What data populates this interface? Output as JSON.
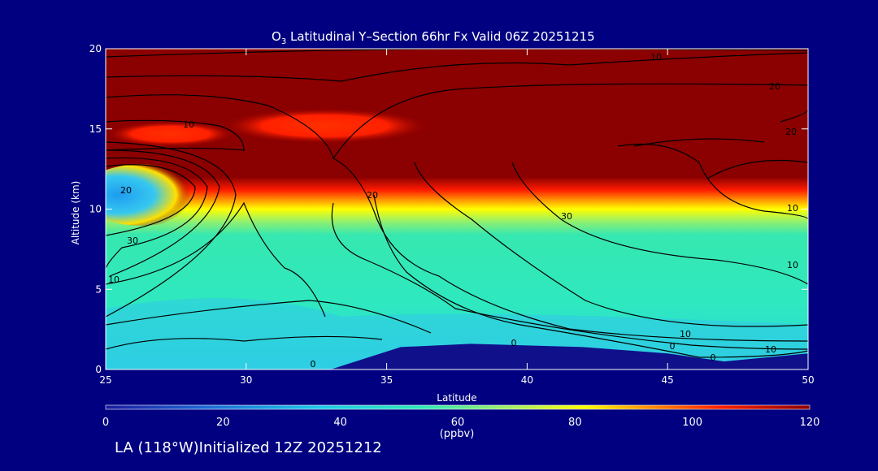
{
  "chart_data": {
    "type": "heatmap",
    "title_prefix": "O",
    "title_subscript": "3",
    "title_rest": " Latitudinal Y–Section 66hr  Fx Valid 06Z 20251215",
    "xlabel": "Latitude",
    "ylabel": "Altitude (km)",
    "xlim": [
      25,
      50
    ],
    "ylim": [
      0,
      20
    ],
    "xticks": [
      25,
      30,
      35,
      40,
      45,
      50
    ],
    "yticks": [
      0,
      5,
      10,
      15,
      20
    ],
    "colorbar": {
      "label": "(ppbv)",
      "range": [
        0,
        120
      ],
      "ticks": [
        0,
        20,
        40,
        60,
        80,
        100,
        120
      ],
      "colors": [
        "#1a1aa0",
        "#1e6fd8",
        "#1ec8e8",
        "#30e8b8",
        "#a8f060",
        "#ffff00",
        "#ff9000",
        "#ff2000",
        "#8b0000"
      ]
    },
    "terrain_top_km": [
      {
        "lat": 25,
        "km": 0
      },
      {
        "lat": 33,
        "km": 0
      },
      {
        "lat": 35.5,
        "km": 1.4
      },
      {
        "lat": 38,
        "km": 1.6
      },
      {
        "lat": 42,
        "km": 1.4
      },
      {
        "lat": 45,
        "km": 1.0
      },
      {
        "lat": 47,
        "km": 0.5
      },
      {
        "lat": 50,
        "km": 1.0
      }
    ],
    "tropopause_km": [
      {
        "lat": 25,
        "km": 12.5
      },
      {
        "lat": 30,
        "km": 11.7
      },
      {
        "lat": 35,
        "km": 11.2
      },
      {
        "lat": 40,
        "km": 11.0
      },
      {
        "lat": 45,
        "km": 10.9
      },
      {
        "lat": 50,
        "km": 10.8
      }
    ],
    "contour_labels": [
      "0",
      "10",
      "20",
      "30",
      "10",
      "20",
      "10",
      "20",
      "30",
      "10",
      "20",
      "10",
      "0",
      "0",
      "10",
      "0",
      "10"
    ]
  },
  "footer": {
    "text": "LA (118°W)Initialized 12Z 20251212"
  }
}
